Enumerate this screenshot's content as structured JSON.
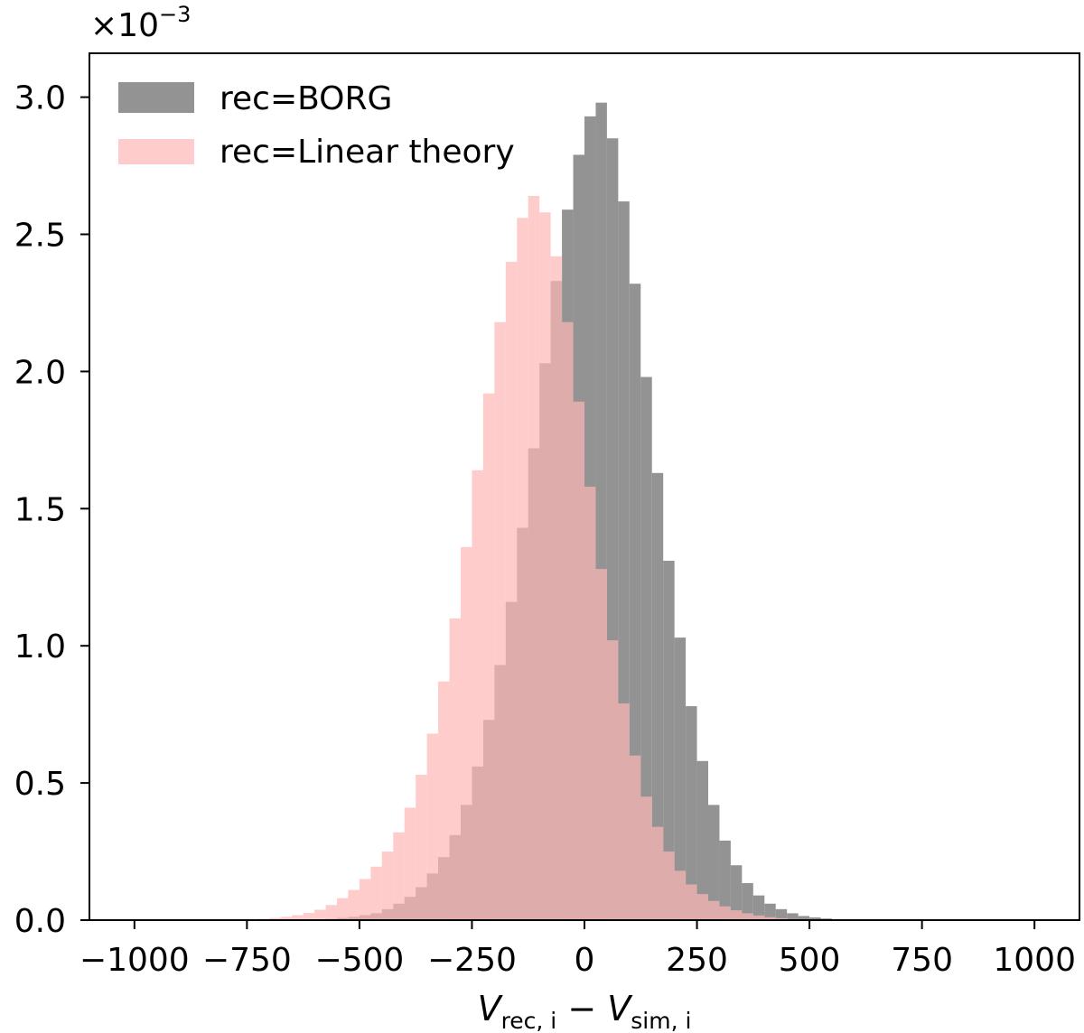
{
  "chart_data": {
    "type": "bar",
    "xlim": [
      -1100,
      1100
    ],
    "ylim": [
      0,
      0.00316
    ],
    "multiplier_text": "×10",
    "multiplier_exponent": "−3",
    "xticks": [
      {
        "value": -1000,
        "label": "−1000"
      },
      {
        "value": -750,
        "label": "−750"
      },
      {
        "value": -500,
        "label": "−500"
      },
      {
        "value": -250,
        "label": "−250"
      },
      {
        "value": 0,
        "label": "0"
      },
      {
        "value": 250,
        "label": "250"
      },
      {
        "value": 500,
        "label": "500"
      },
      {
        "value": 750,
        "label": "750"
      },
      {
        "value": 1000,
        "label": "1000"
      }
    ],
    "yticks": [
      {
        "value": 0.0,
        "label": "0.0"
      },
      {
        "value": 0.0005,
        "label": "0.5"
      },
      {
        "value": 0.001,
        "label": "1.0"
      },
      {
        "value": 0.0015,
        "label": "1.5"
      },
      {
        "value": 0.002,
        "label": "2.0"
      },
      {
        "value": 0.0025,
        "label": "2.5"
      },
      {
        "value": 0.003,
        "label": "3.0"
      }
    ],
    "xlabel": {
      "v1": "V",
      "sub1": "rec, i",
      "minus": " − ",
      "v2": "V",
      "sub2": "sim, i"
    },
    "legend_position": "upper-left",
    "series": [
      {
        "name": "rec=BORG",
        "color": "#808080",
        "alpha": 0.85,
        "bin_start": -575,
        "bin_width": 25,
        "values": [
          5e-06,
          8e-06,
          1.2e-05,
          1.8e-05,
          2.5e-05,
          4e-05,
          6e-05,
          8.5e-05,
          0.00012,
          0.00017,
          0.00023,
          0.00031,
          0.00042,
          0.00056,
          0.00073,
          0.00093,
          0.00116,
          0.00143,
          0.00172,
          0.00203,
          0.00233,
          0.00259,
          0.00279,
          0.00293,
          0.00298,
          0.00285,
          0.00262,
          0.00232,
          0.00198,
          0.00163,
          0.00131,
          0.00103,
          0.00078,
          0.00058,
          0.00042,
          0.00029,
          0.0002,
          0.000135,
          9e-05,
          6e-05,
          4e-05,
          2.5e-05,
          1.5e-05,
          1e-05,
          6e-06,
          3e-06
        ]
      },
      {
        "name": "rec=Linear theory",
        "color": "#ffb6b6",
        "alpha": 0.7,
        "bin_start": -725,
        "bin_width": 25,
        "values": [
          5e-06,
          8e-06,
          1.2e-05,
          1.8e-05,
          2.6e-05,
          3.8e-05,
          5.5e-05,
          8e-05,
          0.00011,
          0.00015,
          0.000195,
          0.00025,
          0.00032,
          0.00041,
          0.00053,
          0.00068,
          0.00087,
          0.0011,
          0.00136,
          0.00164,
          0.00192,
          0.00218,
          0.0024,
          0.00256,
          0.00264,
          0.00258,
          0.00242,
          0.00218,
          0.00189,
          0.00158,
          0.00128,
          0.00102,
          0.00079,
          0.0006,
          0.00045,
          0.00034,
          0.00025,
          0.00018,
          0.00013,
          9.5e-05,
          7e-05,
          5e-05,
          3.6e-05,
          2.5e-05,
          1.7e-05,
          1.1e-05,
          7e-06,
          4e-06,
          2e-06
        ]
      }
    ]
  }
}
